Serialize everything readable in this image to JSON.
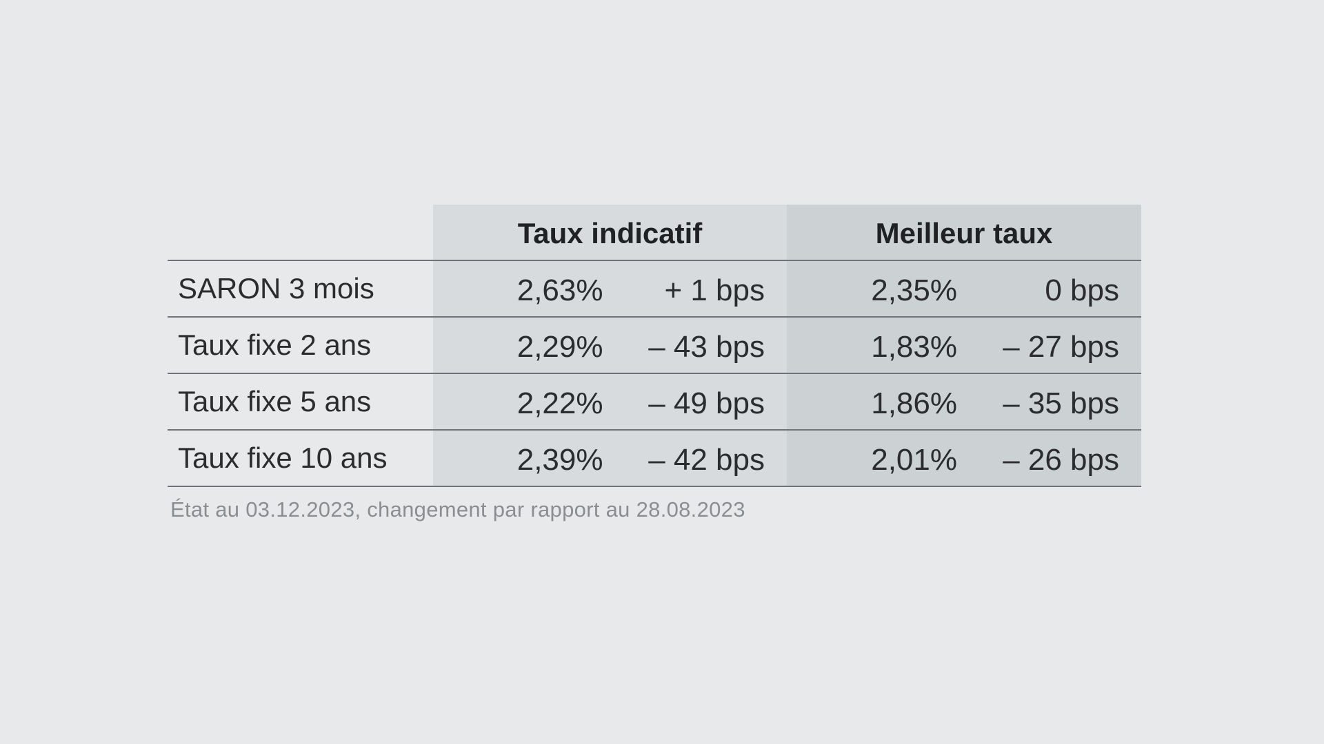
{
  "table": {
    "headers": {
      "indicatif": "Taux indicatif",
      "meilleur": "Meilleur taux"
    },
    "rows": [
      {
        "label": "SARON 3 mois",
        "indicatif_rate": "2,63%",
        "indicatif_change": "+ 1 bps",
        "meilleur_rate": "2,35%",
        "meilleur_change": "0 bps"
      },
      {
        "label": "Taux fixe 2 ans",
        "indicatif_rate": "2,29%",
        "indicatif_change": "– 43 bps",
        "meilleur_rate": "1,83%",
        "meilleur_change": "– 27 bps"
      },
      {
        "label": "Taux fixe 5 ans",
        "indicatif_rate": "2,22%",
        "indicatif_change": "– 49 bps",
        "meilleur_rate": "1,86%",
        "meilleur_change": "– 35 bps"
      },
      {
        "label": "Taux fixe 10 ans",
        "indicatif_rate": "2,39%",
        "indicatif_change": "– 42 bps",
        "meilleur_rate": "2,01%",
        "meilleur_change": "– 26 bps"
      }
    ]
  },
  "footnote": "État au 03.12.2023, changement par rapport au 28.08.2023",
  "colors": {
    "background": "#e8e9ea",
    "indicatif_column": "#d7dbde",
    "meilleur_column": "#ccd1d4",
    "rule": "#6f7377",
    "footnote_text": "#8b8e91"
  }
}
